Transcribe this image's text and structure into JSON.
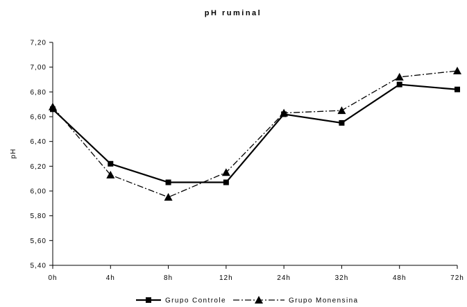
{
  "chart_data": {
    "type": "line",
    "title": "pH ruminal",
    "xlabel": "",
    "ylabel": "pH",
    "categories": [
      "0h",
      "4h",
      "8h",
      "12h",
      "24h",
      "32h",
      "48h",
      "72h"
    ],
    "ylim": [
      5.4,
      7.2
    ],
    "yticks": [
      "5,40",
      "5,60",
      "5,80",
      "6,00",
      "6,20",
      "6,40",
      "6,60",
      "6,80",
      "7,00",
      "7,20"
    ],
    "ytick_values": [
      5.4,
      5.6,
      5.8,
      6.0,
      6.2,
      6.4,
      6.6,
      6.8,
      7.0,
      7.2
    ],
    "grid": false,
    "legend_position": "bottom",
    "series": [
      {
        "name": "Grupo Controle",
        "values": [
          6.66,
          6.22,
          6.07,
          6.07,
          6.62,
          6.55,
          6.86,
          6.82
        ],
        "marker": "square",
        "line_style": "solid",
        "color": "#000000"
      },
      {
        "name": "Grupo Monensina",
        "values": [
          6.68,
          6.13,
          5.95,
          6.15,
          6.63,
          6.65,
          6.92,
          6.97
        ],
        "marker": "triangle",
        "line_style": "dash-dot",
        "color": "#000000"
      }
    ]
  }
}
